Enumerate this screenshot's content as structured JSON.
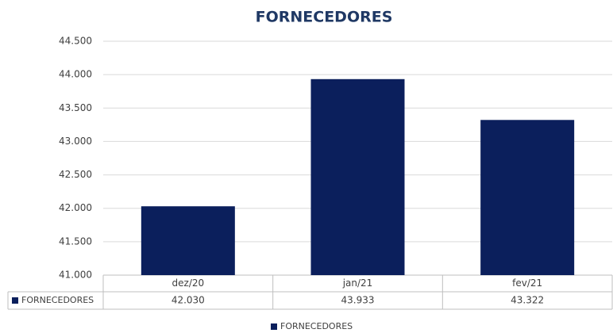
{
  "chart_data": {
    "type": "bar",
    "title": "FORNECEDORES",
    "categories": [
      "dez/20",
      "jan/21",
      "fev/21"
    ],
    "series": [
      {
        "name": "FORNECEDORES",
        "color": "#0b1f5c",
        "values": [
          42030,
          43933,
          43322
        ],
        "value_labels": [
          "42.030",
          "43.933",
          "43.322"
        ]
      }
    ],
    "ylim": [
      41000,
      44500
    ],
    "yticks": [
      {
        "value": 41000,
        "label": "41.000"
      },
      {
        "value": 41500,
        "label": "41.500"
      },
      {
        "value": 42000,
        "label": "42.000"
      },
      {
        "value": 42500,
        "label": "42.500"
      },
      {
        "value": 43000,
        "label": "43.000"
      },
      {
        "value": 43500,
        "label": "43.500"
      },
      {
        "value": 44000,
        "label": "44.000"
      },
      {
        "value": 44500,
        "label": "44.500"
      }
    ],
    "grid": true,
    "legend": "bottom"
  }
}
